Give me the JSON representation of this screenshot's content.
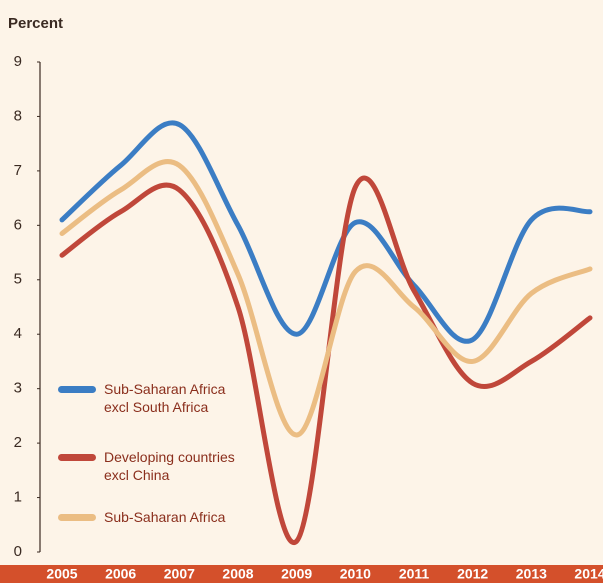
{
  "chart_data": {
    "type": "line",
    "y_label": "Percent",
    "categories": [
      "2005",
      "2006",
      "2007",
      "2008",
      "2009",
      "2010",
      "2011",
      "2012",
      "2013",
      "2014"
    ],
    "series": [
      {
        "name": "Sub-Saharan Africa excl South Africa",
        "color": "#3b7dc4",
        "values": [
          6.1,
          7.1,
          7.85,
          6.0,
          4.0,
          6.05,
          4.9,
          3.9,
          6.1,
          6.25
        ]
      },
      {
        "name": "Developing countries excl China",
        "color": "#c0473a",
        "values": [
          5.45,
          6.25,
          6.65,
          4.5,
          0.2,
          6.7,
          4.8,
          3.1,
          3.5,
          4.3
        ]
      },
      {
        "name": "Sub-Saharan Africa",
        "color": "#ebbd83",
        "values": [
          5.85,
          6.65,
          7.1,
          5.1,
          2.15,
          5.15,
          4.5,
          3.5,
          4.75,
          5.2
        ]
      }
    ],
    "ylim": [
      0,
      9
    ],
    "yticks": [
      0,
      1,
      2,
      3,
      4,
      5,
      6,
      7,
      8,
      9
    ],
    "grid": false
  }
}
